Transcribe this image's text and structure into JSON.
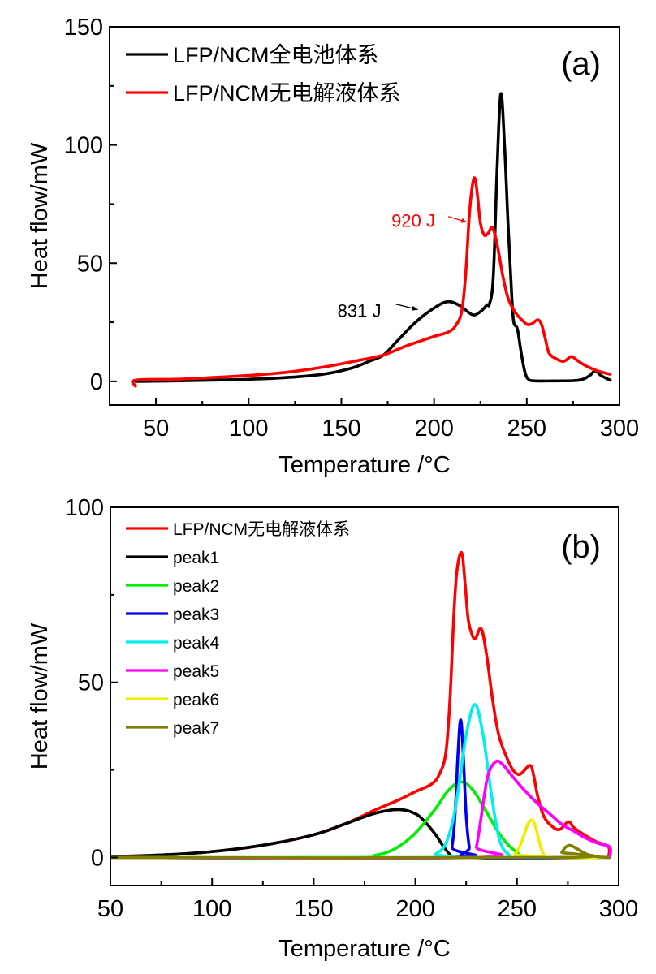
{
  "chart_data": [
    {
      "type": "line",
      "panel_label": "(a)",
      "xlabel": "Temperature /°C",
      "ylabel": "Heat flow/mW",
      "xlim": [
        25,
        300
      ],
      "ylim": [
        -10,
        150
      ],
      "xticks": [
        50,
        100,
        150,
        200,
        250,
        300
      ],
      "yticks": [
        0,
        50,
        100,
        150
      ],
      "grid": false,
      "legend_position": "top-left",
      "series": [
        {
          "name": "LFP/NCM全电池体系",
          "color": "#000000",
          "x": [
            39,
            60,
            80,
            100,
            120,
            140,
            155,
            165,
            172.8,
            180,
            190,
            200,
            207.4,
            214,
            220.6,
            225,
            228.5,
            230,
            232,
            234,
            236,
            238,
            240,
            242,
            243,
            245,
            247,
            249,
            251,
            255,
            265,
            275,
            280,
            284,
            287,
            290,
            295
          ],
          "y": [
            0,
            0.2,
            0.5,
            0.9,
            1.6,
            3,
            5.5,
            8.5,
            11.2,
            17,
            25,
            31,
            33.7,
            32,
            28.2,
            29.5,
            32.3,
            33,
            45,
            90,
            121.6,
            100,
            65,
            35,
            25,
            22,
            12,
            4,
            0.8,
            0.2,
            0.2,
            0.3,
            0.8,
            2.5,
            4.5,
            2.5,
            0.5
          ]
        },
        {
          "name": "LFP/NCM无电解液体系",
          "color": "#ff0000",
          "x": [
            39,
            39,
            60,
            80,
            100,
            120,
            140,
            160,
            172.8,
            185,
            200,
            208,
            212,
            215,
            217,
            219,
            220.5,
            222,
            223.5,
            225,
            227,
            229,
            231.5,
            234,
            237,
            240,
            244,
            248,
            250.5,
            253,
            256,
            258,
            260,
            262,
            266,
            270,
            274,
            277,
            282,
            288,
            295
          ],
          "y": [
            -2,
            0.5,
            0.9,
            1.6,
            2.5,
            3.8,
            6,
            9,
            11.2,
            15,
            19,
            21,
            24,
            30,
            45,
            70,
            82,
            86,
            78,
            67,
            62,
            62.5,
            65,
            58,
            45,
            35,
            29,
            25.5,
            24,
            24.5,
            26,
            24,
            18,
            12,
            9.5,
            8.5,
            10.5,
            9,
            6.5,
            4.5,
            3
          ]
        }
      ],
      "annotations": [
        {
          "text": "920 J",
          "color": "#ff0000",
          "points_to": [
            219.5,
            67
          ]
        },
        {
          "text": "831 J",
          "color": "#000000",
          "points_to": [
            193,
            30
          ]
        }
      ]
    },
    {
      "type": "line",
      "panel_label": "(b)",
      "xlabel": "Temperature /°C",
      "ylabel": "Heat flow/mW",
      "xlim": [
        50,
        300
      ],
      "ylim": [
        -8,
        100
      ],
      "xticks": [
        50,
        100,
        150,
        200,
        250,
        300
      ],
      "yticks": [
        0,
        50,
        100
      ],
      "grid": false,
      "legend_position": "top-left",
      "series": [
        {
          "name": "LFP/NCM无电解液体系",
          "color": "#ff0000",
          "x": [
            50,
            70,
            90,
            110,
            130,
            150,
            165,
            180,
            192,
            200,
            208,
            212,
            215,
            217,
            219,
            220.5,
            222.8,
            224.5,
            226,
            228,
            229.6,
            232.4,
            235,
            238,
            241,
            245,
            248,
            250.8,
            253,
            256.4,
            258,
            260,
            263,
            267,
            271,
            275.2,
            278,
            283,
            289,
            295,
            295
          ],
          "y": [
            0.3,
            0.6,
            1.2,
            2.3,
            4,
            6.5,
            9.5,
            13.5,
            16.5,
            18.8,
            21,
            24,
            30,
            45,
            70,
            82,
            87,
            78,
            68,
            63.5,
            62.6,
            65.3,
            58,
            45,
            35,
            28.5,
            25,
            23.7,
            24.5,
            26.3,
            24,
            18,
            12,
            9,
            8,
            10.2,
            8.5,
            6.5,
            4.5,
            3,
            0
          ]
        },
        {
          "name": "peak1",
          "color": "#000000",
          "x": [
            50,
            70,
            90,
            110,
            130,
            150,
            165,
            180,
            191.6,
            200,
            205,
            210,
            214,
            217.6,
            220,
            295
          ],
          "y": [
            0.3,
            0.6,
            1.2,
            2.3,
            4,
            6.5,
            9.5,
            12.6,
            13.7,
            12.5,
            10,
            6.5,
            3,
            0.5,
            0,
            0
          ]
        },
        {
          "name": "peak2",
          "color": "#00ee00",
          "x": [
            50,
            170,
            180,
            190,
            200,
            210,
            216,
            222.4,
            228,
            234,
            240,
            245,
            250,
            256,
            295
          ],
          "y": [
            0,
            0,
            0.6,
            2.5,
            7,
            14,
            19,
            21.6,
            19.5,
            14,
            8,
            4,
            1.5,
            0,
            0
          ]
        },
        {
          "name": "peak3",
          "color": "#0000ee",
          "x": [
            50,
            216,
            218,
            219.5,
            221,
            222.3,
            223.5,
            225,
            226.5,
            228,
            295
          ],
          "y": [
            0,
            0,
            3,
            12,
            30,
            39.3,
            30,
            12,
            3,
            0,
            0
          ]
        },
        {
          "name": "peak4",
          "color": "#00eeee",
          "x": [
            50,
            205,
            210,
            215,
            219,
            222,
            225,
            229.2,
            233,
            236,
            239,
            242,
            246,
            250,
            295
          ],
          "y": [
            0,
            0,
            1,
            4,
            12,
            23,
            35,
            43.7,
            36,
            24,
            12,
            4,
            0.8,
            0,
            0
          ]
        },
        {
          "name": "peak5",
          "color": "#ff00ff",
          "x": [
            50,
            228,
            230,
            232,
            234,
            236,
            239.6,
            243,
            248,
            254,
            260,
            266,
            272,
            278,
            284,
            290,
            295.6,
            295.6
          ],
          "y": [
            0,
            0,
            3,
            10,
            18,
            24,
            27.4,
            26.5,
            23,
            19,
            15.5,
            12.5,
            9.5,
            7.5,
            5.5,
            4,
            3,
            0
          ]
        },
        {
          "name": "peak6",
          "color": "#eeee00",
          "x": [
            50,
            246,
            249,
            252,
            255,
            257.2,
            259,
            261,
            263,
            266,
            295
          ],
          "y": [
            0,
            0,
            1,
            4,
            9,
            10.7,
            9,
            4.5,
            1,
            0,
            0
          ]
        },
        {
          "name": "peak7",
          "color": "#808000",
          "x": [
            50,
            270,
            272,
            274,
            276,
            278,
            281,
            285,
            290,
            295
          ],
          "y": [
            0,
            0,
            1.5,
            3,
            3.5,
            3,
            2,
            0.8,
            0.2,
            0
          ]
        }
      ]
    }
  ]
}
